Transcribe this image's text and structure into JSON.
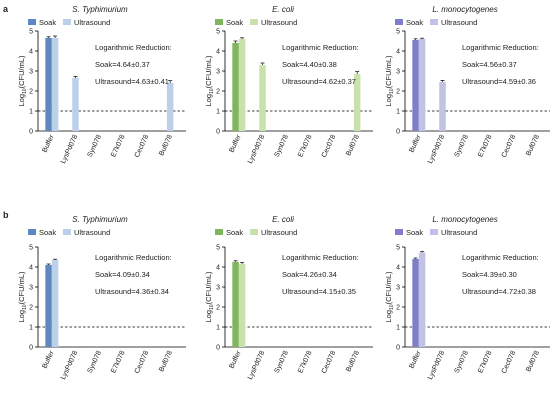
{
  "colors": {
    "soak": [
      "#5f87c0",
      "#7fb55c",
      "#7f7fc7"
    ],
    "ultrasound": [
      "#bdd0ea",
      "#c9e2ad",
      "#c2c2e4"
    ]
  },
  "chart_data": [
    {
      "row_label": "a",
      "type": "bar",
      "title": "S. Typhimurium",
      "categories": [
        "Buffer",
        "LysPd078",
        "Syn078",
        "E7k078",
        "Cec078",
        "Buf078"
      ],
      "ylabel": "Log10(CFU/mL)",
      "ylim": [
        0,
        5
      ],
      "yticks": [
        "0",
        "1",
        "2",
        "3",
        "4",
        "5"
      ],
      "dashed_line_y": 1,
      "legend": [
        "Soak",
        "Ultrasound"
      ],
      "annotation": [
        "Logarithmic Reduction:",
        "Soak=4.64±0.37",
        "Ultrasound=4.63±0.41"
      ],
      "series": [
        {
          "name": "Soak",
          "values": [
            4.65,
            null,
            null,
            null,
            null,
            null
          ],
          "err": [
            0.06,
            null,
            null,
            null,
            null,
            null
          ]
        },
        {
          "name": "Ultrasound",
          "values": [
            4.65,
            2.65,
            null,
            null,
            null,
            2.4
          ],
          "err": [
            0.1,
            0.08,
            null,
            null,
            null,
            0.12
          ]
        }
      ]
    },
    {
      "row_label": "",
      "type": "bar",
      "title": "E. coli",
      "categories": [
        "Buffer",
        "LysPd078",
        "Syn078",
        "E7k078",
        "Cec078",
        "Buf078"
      ],
      "ylabel": "Log10(CFU/mL)",
      "ylim": [
        0,
        5
      ],
      "yticks": [
        "0",
        "1",
        "2",
        "3",
        "4",
        "5"
      ],
      "dashed_line_y": 1,
      "legend": [
        "Soak",
        "Ultrasound"
      ],
      "annotation": [
        "Logarithmic Reduction:",
        "Soak=4.40±0.38",
        "Ultrasound=4.62±0.37"
      ],
      "series": [
        {
          "name": "Soak",
          "values": [
            4.4,
            null,
            null,
            null,
            null,
            null
          ],
          "err": [
            0.1,
            null,
            null,
            null,
            null,
            null
          ]
        },
        {
          "name": "Ultrasound",
          "values": [
            4.6,
            3.3,
            null,
            null,
            null,
            2.85
          ],
          "err": [
            0.06,
            0.1,
            null,
            null,
            null,
            0.12
          ]
        }
      ]
    },
    {
      "row_label": "",
      "type": "bar",
      "title": "L. monocytogenes",
      "categories": [
        "Buffer",
        "LysPd078",
        "Syn078",
        "E7k078",
        "Cec078",
        "Buf078"
      ],
      "ylabel": "Log10(CFU/mL)",
      "ylim": [
        0,
        5
      ],
      "yticks": [
        "0",
        "1",
        "2",
        "3",
        "4",
        "5"
      ],
      "dashed_line_y": 1,
      "legend": [
        "Soak",
        "Ultrasound"
      ],
      "annotation": [
        "Logarithmic Reduction:",
        "Soak=4.56±0.37",
        "Ultrasound=4.59±0.36"
      ],
      "series": [
        {
          "name": "Soak",
          "values": [
            4.55,
            null,
            null,
            null,
            null,
            null
          ],
          "err": [
            0.06,
            null,
            null,
            null,
            null,
            null
          ]
        },
        {
          "name": "Ultrasound",
          "values": [
            4.6,
            2.45,
            null,
            null,
            null,
            null
          ],
          "err": [
            0.04,
            0.08,
            null,
            null,
            null,
            null
          ]
        }
      ]
    },
    {
      "row_label": "b",
      "type": "bar",
      "title": "S. Typhimurium",
      "categories": [
        "Buffer",
        "LysPd078",
        "Syn078",
        "E7k078",
        "Cec078",
        "Buf078"
      ],
      "ylabel": "Log10(CFU/mL)",
      "ylim": [
        0,
        5
      ],
      "yticks": [
        "0",
        "1",
        "2",
        "3",
        "4",
        "5"
      ],
      "dashed_line_y": 1,
      "legend": [
        "Soak",
        "Ultrasound"
      ],
      "annotation": [
        "Logarithmic Reduction:",
        "Soak=4.09±0.34",
        "Ultrasound=4.36±0.34"
      ],
      "series": [
        {
          "name": "Soak",
          "values": [
            4.1,
            null,
            null,
            null,
            null,
            null
          ],
          "err": [
            0.05,
            null,
            null,
            null,
            null,
            null
          ]
        },
        {
          "name": "Ultrasound",
          "values": [
            4.35,
            null,
            null,
            null,
            null,
            null
          ],
          "err": [
            0.04,
            null,
            null,
            null,
            null,
            null
          ]
        }
      ]
    },
    {
      "row_label": "",
      "type": "bar",
      "title": "E. coli",
      "categories": [
        "Buffer",
        "LysPd078",
        "Syn078",
        "E7k078",
        "Cec078",
        "Buf078"
      ],
      "ylabel": "Log10(CFU/mL)",
      "ylim": [
        0,
        5
      ],
      "yticks": [
        "0",
        "1",
        "2",
        "3",
        "4",
        "5"
      ],
      "dashed_line_y": 1,
      "legend": [
        "Soak",
        "Ultrasound"
      ],
      "annotation": [
        "Logarithmic Reduction:",
        "Soak=4.26±0.34",
        "Ultrasound=4.15±0.35"
      ],
      "series": [
        {
          "name": "Soak",
          "values": [
            4.25,
            null,
            null,
            null,
            null,
            null
          ],
          "err": [
            0.06,
            null,
            null,
            null,
            null,
            null
          ]
        },
        {
          "name": "Ultrasound",
          "values": [
            4.15,
            null,
            null,
            null,
            null,
            null
          ],
          "err": [
            0.07,
            null,
            null,
            null,
            null,
            null
          ]
        }
      ]
    },
    {
      "row_label": "",
      "type": "bar",
      "title": "L. monocytogenes",
      "categories": [
        "Buffer",
        "LysPd078",
        "Syn078",
        "E7k078",
        "Cec078",
        "Buf078"
      ],
      "ylabel": "Log10(CFU/mL)",
      "ylim": [
        0,
        5
      ],
      "yticks": [
        "0",
        "1",
        "2",
        "3",
        "4",
        "5"
      ],
      "dashed_line_y": 1,
      "legend": [
        "Soak",
        "Ultrasound"
      ],
      "annotation": [
        "Logarithmic Reduction:",
        "Soak=4.39±0.30",
        "Ultrasound=4.72±0.38"
      ],
      "series": [
        {
          "name": "Soak",
          "values": [
            4.4,
            null,
            null,
            null,
            null,
            null
          ],
          "err": [
            0.05,
            null,
            null,
            null,
            null,
            null
          ]
        },
        {
          "name": "Ultrasound",
          "values": [
            4.72,
            null,
            null,
            null,
            null,
            null
          ],
          "err": [
            0.05,
            null,
            null,
            null,
            null,
            null
          ]
        }
      ]
    }
  ]
}
